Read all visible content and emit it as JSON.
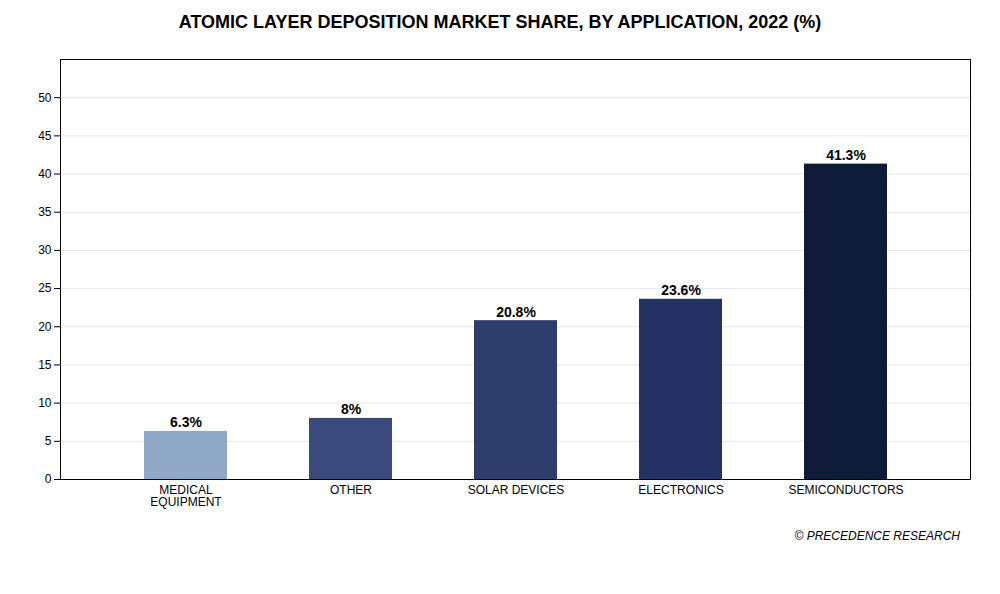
{
  "chart_data": {
    "type": "bar",
    "title": "ATOMIC LAYER DEPOSITION MARKET SHARE, BY APPLICATION, 2022 (%)",
    "categories": [
      "MEDICAL\nEQUIPMENT",
      "OTHER",
      "SOLAR DEVICES",
      "ELECTRONICS",
      "SEMICONDUCTORS"
    ],
    "values": [
      6.3,
      8.0,
      20.8,
      23.6,
      41.3
    ],
    "value_labels": [
      "6.3%",
      "8%",
      "20.8%",
      "23.6%",
      "41.3%"
    ],
    "colors": [
      "#8fa8c8",
      "#3a4a7a",
      "#2e3d6b",
      "#253163",
      "#0d1a38"
    ],
    "ylim": [
      0,
      55
    ],
    "yticks": [
      0,
      5,
      10,
      15,
      20,
      25,
      30,
      35,
      40,
      45,
      50
    ],
    "grid": true,
    "data_labels": true,
    "annotations": [
      "© PRECEDENCE RESEARCH"
    ]
  }
}
